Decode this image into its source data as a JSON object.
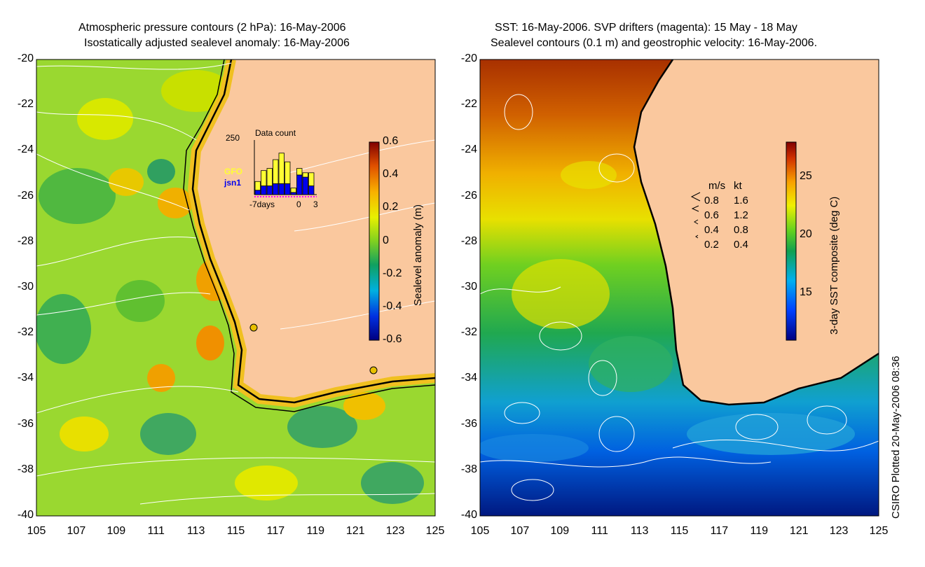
{
  "left_panel": {
    "title_line1": "Atmospheric pressure contours (2 hPa): 16-May-2006",
    "title_line2": "Isostatically adjusted sealevel anomaly: 16-May-2006",
    "colorbar": {
      "label": "Sealevel anomaly (m)",
      "ticks": [
        "0.6",
        "0.4",
        "0.2",
        "0",
        "-0.2",
        "-0.4",
        "-0.6"
      ],
      "range": [
        -0.6,
        0.6
      ]
    },
    "inset": {
      "title": "Data count",
      "ymax_label": "250",
      "xlabel_left": "-7days",
      "xlabel_zero": "0",
      "xlabel_right": "3",
      "legend_gfo": "GFO",
      "legend_jsn1": "jsn1",
      "gfo_color": "#ffff33",
      "jsn1_color": "#0000ee",
      "gfo_bars": [
        40,
        70,
        80,
        110,
        140,
        100,
        20,
        30,
        20,
        60
      ],
      "jsn1_bars": [
        20,
        40,
        40,
        50,
        50,
        50,
        10,
        90,
        80,
        40
      ]
    }
  },
  "right_panel": {
    "title_line1": "SST: 16-May-2006. SVP drifters (magenta): 15 May - 18 May",
    "title_line2": "Sealevel contours (0.1 m) and geostrophic velocity: 16-May-2006.",
    "colorbar": {
      "label": "3-day SST composite (deg C)",
      "ticks": [
        "25",
        "20",
        "15"
      ],
      "range": [
        11,
        28
      ]
    },
    "velocity_legend": {
      "header_ms": "m/s",
      "header_kt": "kt",
      "rows": [
        {
          "ms": "0.8",
          "kt": "1.6"
        },
        {
          "ms": "0.6",
          "kt": "1.2"
        },
        {
          "ms": "0.4",
          "kt": "0.8"
        },
        {
          "ms": "0.2",
          "kt": "0.4"
        }
      ]
    }
  },
  "axes": {
    "lat_ticks": [
      "-20",
      "-22",
      "-24",
      "-26",
      "-28",
      "-30",
      "-32",
      "-34",
      "-36",
      "-38",
      "-40"
    ],
    "lon_ticks": [
      "105",
      "107",
      "109",
      "111",
      "113",
      "115",
      "117",
      "119",
      "121",
      "123",
      "125"
    ],
    "lon_range": [
      105,
      125
    ],
    "lat_range": [
      -40,
      -20
    ]
  },
  "credit": "CSIRO Plotted 20-May-2006 08:36",
  "colors": {
    "land": "#fac89e",
    "coast": "#000000",
    "contour": "#ffffff"
  }
}
